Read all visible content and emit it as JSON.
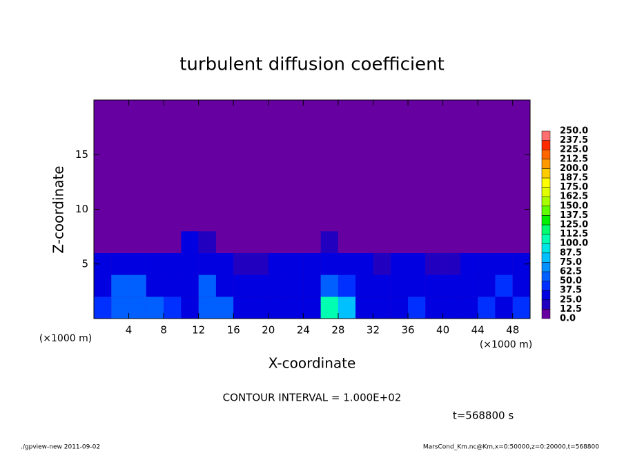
{
  "chart_data": {
    "type": "heatmap",
    "title": "turbulent diffusion coefficient",
    "x_label": "X-coordinate",
    "y_label": "Z-coordinate",
    "x_unit": "(×1000 m)",
    "y_unit": "(×1000 m)",
    "annotation": "CONTOUR INTERVAL = 1.000E+02",
    "time_label": "t=568800 s",
    "footer_left": "./gpview-new  2011-09-02",
    "footer_right": "MarsCond_Km.nc@Km,x=0:50000,z=0:20000,t=568800",
    "background": "#6600a0",
    "xlim": [
      0,
      50
    ],
    "ylim": [
      0,
      20
    ],
    "xticks": [
      4,
      8,
      12,
      16,
      20,
      24,
      28,
      32,
      36,
      40,
      44,
      48
    ],
    "yticks": [
      5,
      10,
      15
    ],
    "x": [
      1,
      3,
      5,
      7,
      9,
      11,
      13,
      15,
      17,
      19,
      21,
      23,
      25,
      27,
      29,
      31,
      33,
      35,
      37,
      39,
      41,
      43,
      45,
      47,
      49
    ],
    "z": [
      1,
      3,
      5,
      7,
      9,
      11,
      13,
      15,
      17,
      19
    ],
    "values": [
      [
        40,
        50,
        62,
        50,
        40,
        37,
        62,
        50,
        37,
        30,
        25,
        30,
        37,
        100,
        75,
        37,
        30,
        37,
        40,
        37,
        30,
        37,
        40,
        37,
        40
      ],
      [
        37,
        50,
        50,
        37,
        30,
        30,
        50,
        37,
        30,
        25,
        25,
        25,
        30,
        50,
        40,
        30,
        37,
        30,
        37,
        30,
        37,
        30,
        37,
        40,
        37
      ],
      [
        37,
        37,
        30,
        25,
        25,
        30,
        30,
        25,
        12.5,
        12.5,
        25,
        25,
        30,
        37,
        30,
        25,
        12.5,
        25,
        25,
        12.5,
        12.5,
        25,
        25,
        30,
        25
      ],
      [
        0,
        0,
        0,
        0,
        0,
        25,
        12.5,
        0,
        0,
        0,
        0,
        0,
        0,
        12.5,
        0,
        0,
        0,
        0,
        0,
        0,
        0,
        0,
        0,
        0,
        0
      ],
      [
        0,
        0,
        0,
        0,
        0,
        0,
        0,
        0,
        0,
        0,
        0,
        0,
        0,
        0,
        0,
        0,
        0,
        0,
        0,
        0,
        0,
        0,
        0,
        0,
        0
      ],
      [
        0,
        0,
        0,
        0,
        0,
        0,
        0,
        0,
        0,
        0,
        0,
        0,
        0,
        0,
        0,
        0,
        0,
        0,
        0,
        0,
        0,
        0,
        0,
        0,
        0
      ],
      [
        0,
        0,
        0,
        0,
        0,
        0,
        0,
        0,
        0,
        0,
        0,
        0,
        0,
        0,
        0,
        0,
        0,
        0,
        0,
        0,
        0,
        0,
        0,
        0,
        0
      ],
      [
        0,
        0,
        0,
        0,
        0,
        0,
        0,
        0,
        0,
        0,
        0,
        0,
        0,
        0,
        0,
        0,
        0,
        0,
        0,
        0,
        0,
        0,
        0,
        0,
        0
      ],
      [
        0,
        0,
        0,
        0,
        0,
        0,
        0,
        0,
        0,
        0,
        0,
        0,
        0,
        0,
        0,
        0,
        0,
        0,
        0,
        0,
        0,
        0,
        0,
        0,
        0
      ],
      [
        0,
        0,
        0,
        0,
        0,
        0,
        0,
        0,
        0,
        0,
        0,
        0,
        0,
        0,
        0,
        0,
        0,
        0,
        0,
        0,
        0,
        0,
        0,
        0,
        0
      ]
    ],
    "levels": [
      {
        "value": 0,
        "label": "0.0"
      },
      {
        "value": 12.5,
        "label": "12.5"
      },
      {
        "value": 25,
        "label": "25.0"
      },
      {
        "value": 37.5,
        "label": "37.5"
      },
      {
        "value": 50,
        "label": "50.0"
      },
      {
        "value": 62.5,
        "label": "62.5"
      },
      {
        "value": 75,
        "label": "75.0"
      },
      {
        "value": 87.5,
        "label": "87.5"
      },
      {
        "value": 100,
        "label": "100.0"
      },
      {
        "value": 112.5,
        "label": "112.5"
      },
      {
        "value": 125,
        "label": "125.0"
      },
      {
        "value": 137.5,
        "label": "137.5"
      },
      {
        "value": 150,
        "label": "150.0"
      },
      {
        "value": 162.5,
        "label": "162.5"
      },
      {
        "value": 175,
        "label": "175.0"
      },
      {
        "value": 187.5,
        "label": "187.5"
      },
      {
        "value": 200,
        "label": "200.0"
      },
      {
        "value": 212.5,
        "label": "212.5"
      },
      {
        "value": 225,
        "label": "225.0"
      },
      {
        "value": 237.5,
        "label": "237.5"
      },
      {
        "value": 250,
        "label": "250.0"
      }
    ],
    "colors": [
      "#6600a0",
      "#2200c0",
      "#0000e0",
      "#0030ff",
      "#0060ff",
      "#0090ff",
      "#00c0ff",
      "#00e6e6",
      "#00ffb0",
      "#00ff70",
      "#00f000",
      "#60ff00",
      "#a8ff00",
      "#e0ff00",
      "#ffff00",
      "#ffcc00",
      "#ff9900",
      "#ff6600",
      "#ff2a00",
      "#ff6f6f"
    ]
  }
}
